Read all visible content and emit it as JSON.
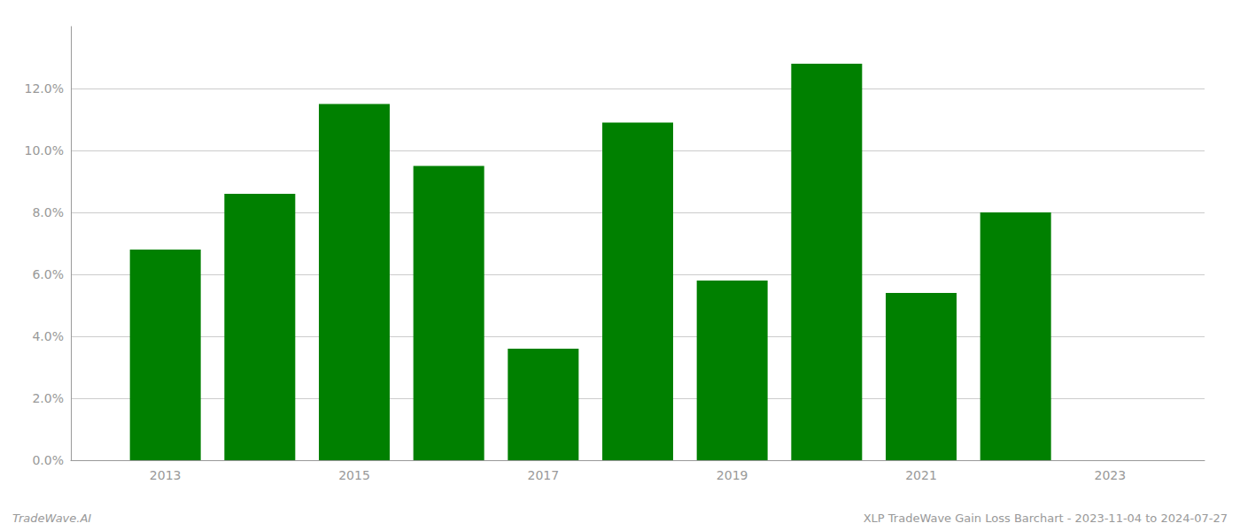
{
  "chart_data": {
    "type": "bar",
    "x": [
      2013,
      2014,
      2015,
      2016,
      2017,
      2018,
      2019,
      2020,
      2021,
      2022
    ],
    "values": [
      0.068,
      0.086,
      0.115,
      0.095,
      0.036,
      0.109,
      0.058,
      0.128,
      0.054,
      0.08
    ],
    "color": "#008000",
    "xlim": [
      2012,
      2024
    ],
    "xticks": [
      2013,
      2015,
      2017,
      2019,
      2021,
      2023
    ],
    "ylim": [
      0,
      0.14
    ],
    "yticks": [
      {
        "value": 0.0,
        "label": "0.0%"
      },
      {
        "value": 0.02,
        "label": "2.0%"
      },
      {
        "value": 0.04,
        "label": "4.0%"
      },
      {
        "value": 0.06,
        "label": "6.0%"
      },
      {
        "value": 0.08,
        "label": "8.0%"
      },
      {
        "value": 0.1,
        "label": "10.0%"
      },
      {
        "value": 0.12,
        "label": "12.0%"
      }
    ],
    "grid": true,
    "annotations": [
      "TradeWave.AI",
      "XLP TradeWave Gain Loss Barchart - 2023-11-04 to 2024-07-27"
    ]
  }
}
